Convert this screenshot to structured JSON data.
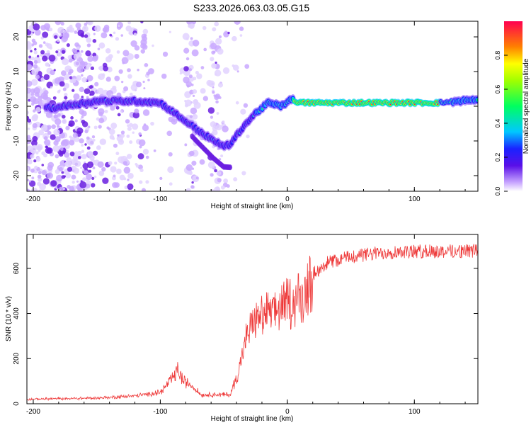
{
  "title": "S233.2026.063.03.05.G15",
  "chart_data": [
    {
      "type": "heatmap",
      "name": "spectrogram",
      "xlabel": "Height of straight line (km)",
      "ylabel": "Frequency (Hz)",
      "xlim": [
        -205,
        150
      ],
      "ylim": [
        -24.5,
        24.5
      ],
      "xticks": [
        -200,
        -100,
        0,
        100
      ],
      "yticks": [
        -20,
        -10,
        0,
        10,
        20
      ],
      "colorbar": {
        "label": "Normalized spectral amplitude",
        "range": [
          0,
          1
        ],
        "ticks": [
          0.0,
          0.2,
          0.4,
          0.6,
          0.8
        ]
      },
      "ridge": [
        {
          "x": -185,
          "y": -0.5
        },
        {
          "x": -150,
          "y": 1.5
        },
        {
          "x": -120,
          "y": 1.5
        },
        {
          "x": -100,
          "y": 1
        },
        {
          "x": -85,
          "y": -3
        },
        {
          "x": -70,
          "y": -7
        },
        {
          "x": -58,
          "y": -10
        },
        {
          "x": -50,
          "y": -11.5
        },
        {
          "x": -45,
          "y": -11
        },
        {
          "x": -35,
          "y": -6
        },
        {
          "x": -25,
          "y": -2
        },
        {
          "x": -15,
          "y": 1
        },
        {
          "x": -5,
          "y": 0
        },
        {
          "x": 3,
          "y": 2
        },
        {
          "x": 10,
          "y": 1
        },
        {
          "x": 50,
          "y": 1
        },
        {
          "x": 120,
          "y": 1
        },
        {
          "x": 150,
          "y": 2
        }
      ]
    },
    {
      "type": "line",
      "name": "snr",
      "xlabel": "Height of straight line (km)",
      "ylabel": "SNR (10 * v/v)",
      "xlim": [
        -205,
        150
      ],
      "ylim": [
        0,
        750
      ],
      "xticks": [
        -200,
        -100,
        0,
        100
      ],
      "yticks": [
        0,
        200,
        400,
        600
      ],
      "color": "#ee3a3a",
      "envelope": [
        {
          "x": -205,
          "y": 20
        },
        {
          "x": -150,
          "y": 25
        },
        {
          "x": -120,
          "y": 35
        },
        {
          "x": -100,
          "y": 50
        },
        {
          "x": -92,
          "y": 100
        },
        {
          "x": -86,
          "y": 150
        },
        {
          "x": -82,
          "y": 100
        },
        {
          "x": -75,
          "y": 80
        },
        {
          "x": -68,
          "y": 40
        },
        {
          "x": -45,
          "y": 40
        },
        {
          "x": -38,
          "y": 150
        },
        {
          "x": -32,
          "y": 300
        },
        {
          "x": -25,
          "y": 380
        },
        {
          "x": -10,
          "y": 410
        },
        {
          "x": 0,
          "y": 440
        },
        {
          "x": 10,
          "y": 470
        },
        {
          "x": 20,
          "y": 560
        },
        {
          "x": 30,
          "y": 610
        },
        {
          "x": 50,
          "y": 640
        },
        {
          "x": 80,
          "y": 660
        },
        {
          "x": 150,
          "y": 665
        }
      ]
    }
  ]
}
